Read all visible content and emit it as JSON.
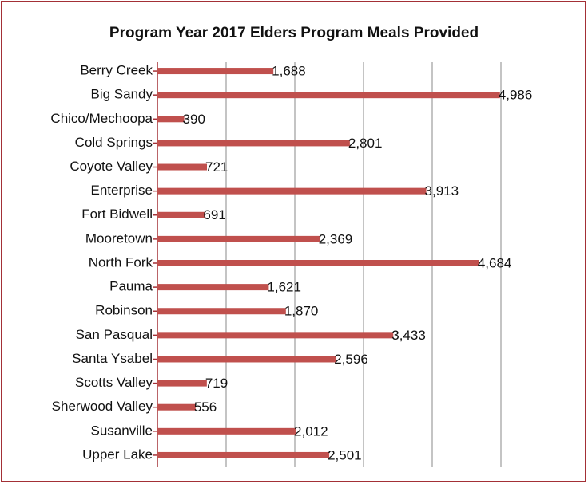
{
  "chart_data": {
    "type": "barh",
    "title": "Program Year 2017 Elders Program Meals Provided",
    "categories": [
      "Berry Creek",
      "Big Sandy",
      "Chico/Mechoopa",
      "Cold Springs",
      "Coyote Valley",
      "Enterprise",
      "Fort Bidwell",
      "Mooretown",
      "North Fork",
      "Pauma",
      "Robinson",
      "San Pasqual",
      "Santa Ysabel",
      "Scotts Valley",
      "Sherwood Valley",
      "Susanville",
      "Upper Lake"
    ],
    "values": [
      1688,
      4986,
      390,
      2801,
      721,
      3913,
      691,
      2369,
      4684,
      1621,
      1870,
      3433,
      2596,
      719,
      556,
      2012,
      2501
    ],
    "value_labels": [
      "1,688",
      "4,986",
      "390",
      "2,801",
      "721",
      "3,913",
      "691",
      "2,369",
      "4,684",
      "1,621",
      "1,870",
      "3,433",
      "2,596",
      "719",
      "556",
      "2,012",
      "2,501"
    ],
    "color": "#c0504d",
    "xlim": [
      0,
      5000
    ],
    "xticks": [
      0,
      1000,
      2000,
      3000,
      4000,
      5000
    ],
    "grid": true
  }
}
